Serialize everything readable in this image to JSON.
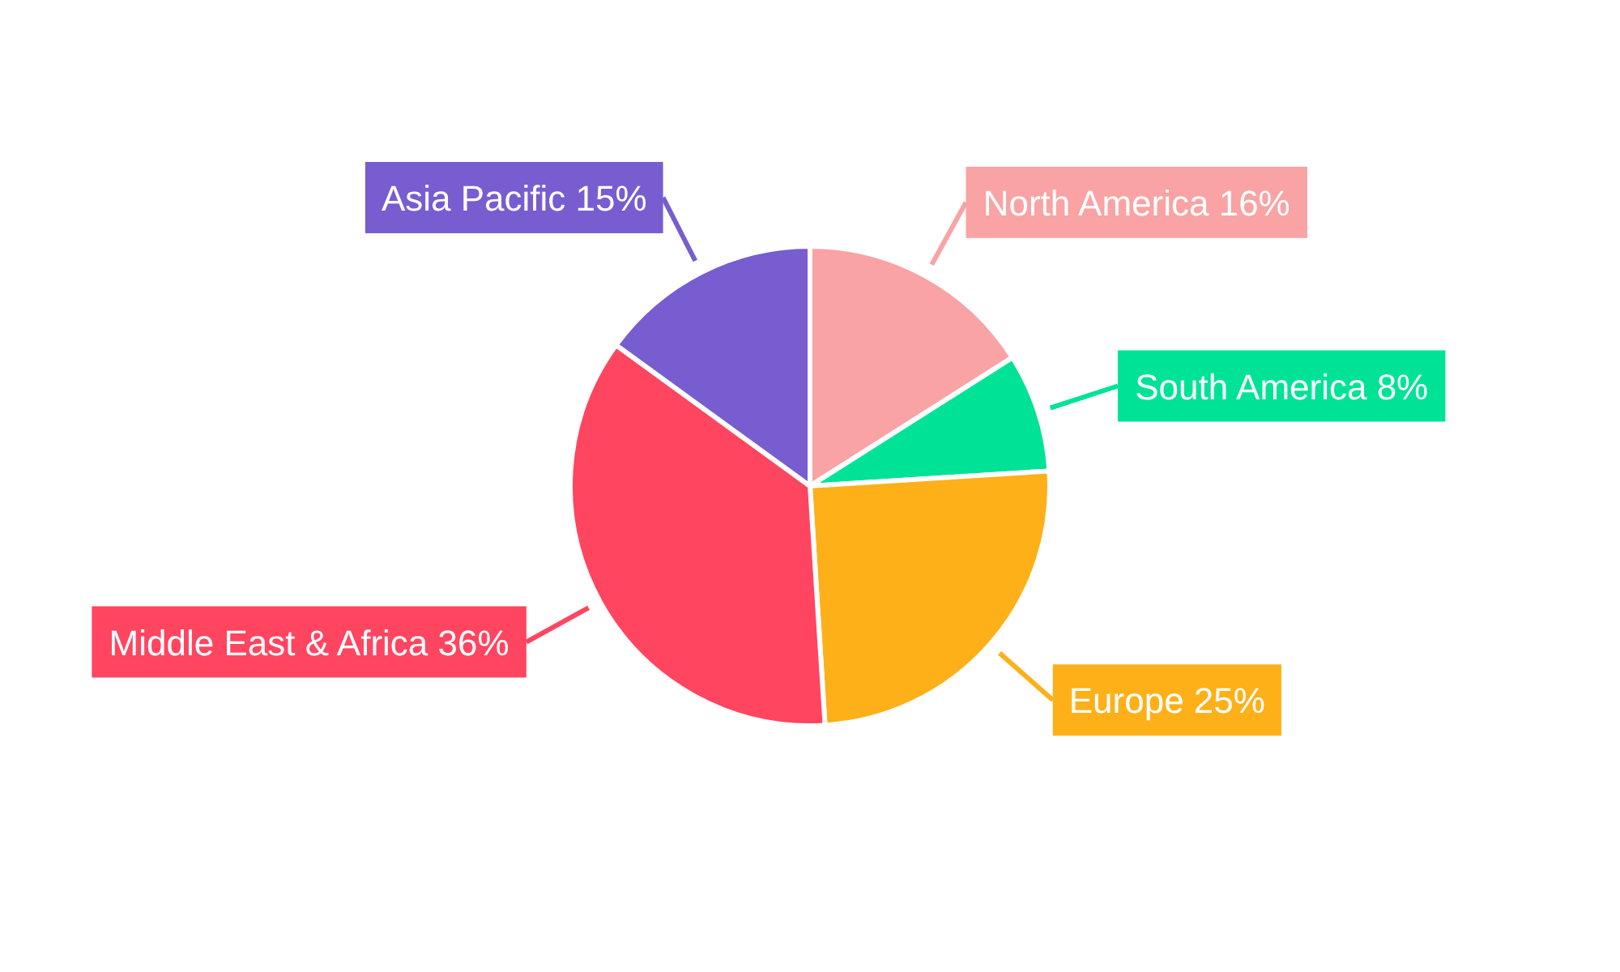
{
  "chart_data": {
    "type": "pie",
    "categories": [
      "North America",
      "South America",
      "Europe",
      "Middle East & Africa",
      "Asia Pacific"
    ],
    "values": [
      16,
      8,
      25,
      36,
      15
    ],
    "value_labels": [
      "16%",
      "8%",
      "25%",
      "36%",
      "15%"
    ],
    "colors": [
      "#f9a3a4",
      "#00e396",
      "#feb019",
      "#ff4560",
      "#775dd0"
    ]
  }
}
